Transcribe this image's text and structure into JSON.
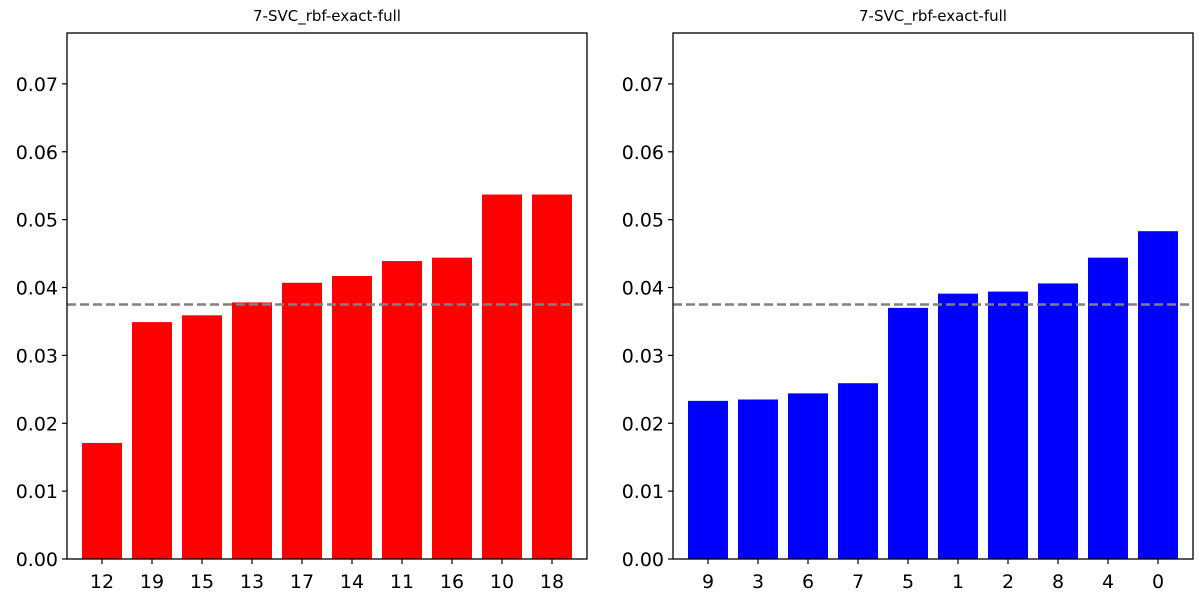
{
  "chart_data": [
    {
      "type": "bar",
      "title": "7-SVC_rbf-exact-full",
      "xlabel": "",
      "ylabel": "",
      "categories": [
        "12",
        "19",
        "15",
        "13",
        "17",
        "14",
        "11",
        "16",
        "10",
        "18"
      ],
      "values": [
        0.0171,
        0.0349,
        0.0359,
        0.0378,
        0.0407,
        0.0417,
        0.0439,
        0.0444,
        0.0537,
        0.0537
      ],
      "color": "#ff0000",
      "reference_line": 0.0375,
      "reference_color": "#808080",
      "ylim": [
        0,
        0.0775
      ],
      "yticks": [
        "0.00",
        "0.01",
        "0.02",
        "0.03",
        "0.04",
        "0.05",
        "0.06",
        "0.07"
      ],
      "grid": false
    },
    {
      "type": "bar",
      "title": "7-SVC_rbf-exact-full",
      "xlabel": "",
      "ylabel": "",
      "categories": [
        "9",
        "3",
        "6",
        "7",
        "5",
        "1",
        "2",
        "8",
        "4",
        "0"
      ],
      "values": [
        0.0233,
        0.0235,
        0.0244,
        0.0259,
        0.037,
        0.0391,
        0.0394,
        0.0406,
        0.0444,
        0.0483
      ],
      "color": "#0000ff",
      "reference_line": 0.0375,
      "reference_color": "#808080",
      "ylim": [
        0,
        0.0775
      ],
      "yticks": [
        "0.00",
        "0.01",
        "0.02",
        "0.03",
        "0.04",
        "0.05",
        "0.06",
        "0.07"
      ],
      "grid": false
    }
  ]
}
